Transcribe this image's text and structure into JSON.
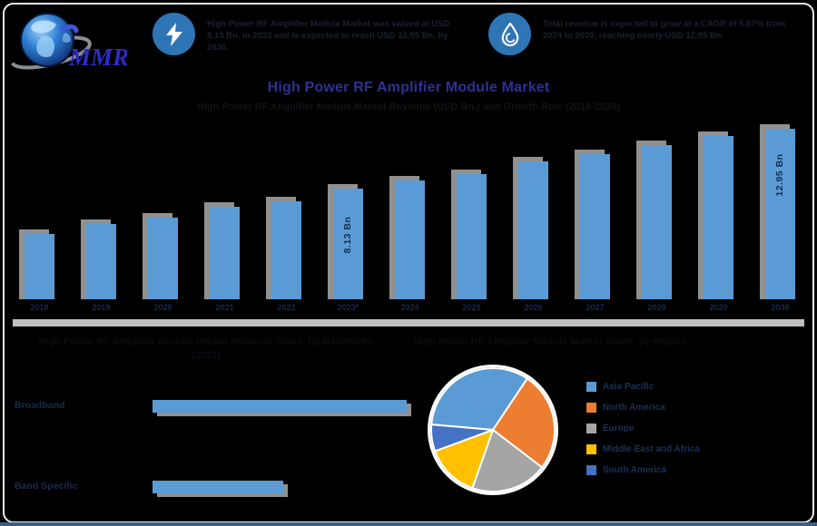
{
  "page": {
    "background": "#000000",
    "frame_border": "#E9EBF2",
    "footer_bar_color": "#3A5F85"
  },
  "logo": {
    "mmr": "MMR"
  },
  "header": {
    "badge1": {
      "icon": "lightning-icon",
      "circle_color": "#2E75B6",
      "text": "High Power RF Amplifier Module Market was valued at USD 8.13 Bn. in 2023 and is expected to reach USD 12.95 Bn. by 2030."
    },
    "badge2": {
      "icon": "droplet-icon",
      "circle_color": "#2E75B6",
      "text": "Total revenue is expected to grow at a CAGR of 6.87% from 2024 to 2030, reaching nearly USD 12.95 Bn."
    },
    "title": "High Power RF Amplifier Module Market",
    "title_color": "#2E3192",
    "subtitle": "High Power RF Amplifier Module Market Revenue (USD Bn.) and Growth Rate (2018-2030)"
  },
  "chart_data": [
    {
      "id": "revenue_bars",
      "type": "bar",
      "title": "High Power RF Amplifier Module Market",
      "categories": [
        "2018",
        "2019",
        "2020",
        "2021",
        "2022",
        "2023*",
        "2024",
        "2025",
        "2026",
        "2027",
        "2028",
        "2029",
        "2030"
      ],
      "values": [
        4.5,
        5.3,
        5.8,
        6.7,
        7.1,
        8.13,
        8.8,
        9.3,
        10.3,
        10.9,
        11.6,
        12.4,
        12.95
      ],
      "unit": "USD Bn",
      "callouts": [
        {
          "index": 5,
          "label": "8.13 Bn"
        },
        {
          "index": 12,
          "label": "12.95 Bn"
        }
      ],
      "bar_color": "#5B9BD5",
      "shadow_color": "#909090",
      "axis_band_color": "#BFBFBF",
      "tick_color": "#16294E",
      "grid": false,
      "ylim": [
        0,
        13
      ]
    },
    {
      "id": "segment_bars",
      "type": "bar",
      "orientation": "horizontal",
      "categories": [
        "Broadband",
        "Band Specific"
      ],
      "values": [
        66,
        34
      ],
      "unit": "%",
      "bar_color": "#5B9BD5",
      "shadow_color": "#909090",
      "grid": false
    },
    {
      "id": "region_pie",
      "type": "pie",
      "categories": [
        "Asia Pacific",
        "North America",
        "Europe",
        "Middle East and Africa",
        "South America"
      ],
      "values": [
        33,
        26,
        20,
        14,
        7
      ],
      "unit": "%",
      "colors": [
        "#5B9BD5",
        "#ED7D31",
        "#A5A5A5",
        "#FFC000",
        "#4472C4"
      ],
      "start_angle_deg": 275,
      "stroke_color": "#FFFFFF",
      "legend_position": "right"
    }
  ],
  "bottom_left": {
    "heading": "High Power RF Amplifier Module Market Revenue Share, by Bandwidth",
    "heading_year": "(2023)"
  },
  "bottom_right": {
    "heading": "High Power RF Amplifier Module Market Share, by Region"
  }
}
